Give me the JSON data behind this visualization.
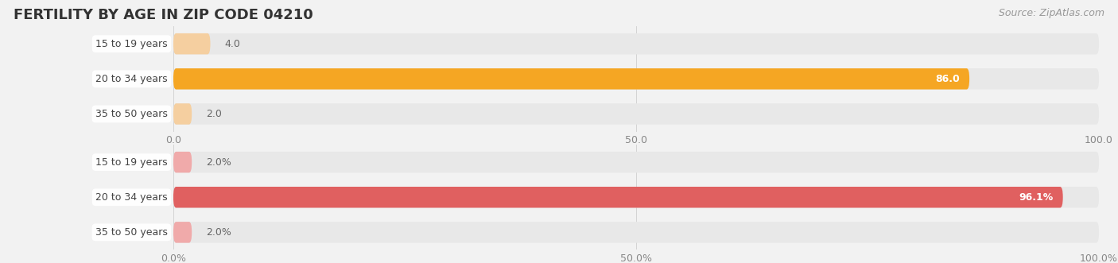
{
  "title": "FERTILITY BY AGE IN ZIP CODE 04210",
  "source": "Source: ZipAtlas.com",
  "fig_width": 14.06,
  "fig_height": 3.31,
  "top_section": {
    "categories": [
      "15 to 19 years",
      "20 to 34 years",
      "35 to 50 years"
    ],
    "values": [
      4.0,
      86.0,
      2.0
    ],
    "xlim": [
      0,
      100
    ],
    "xticks": [
      0.0,
      50.0,
      100.0
    ],
    "xtick_labels": [
      "0.0",
      "50.0",
      "100.0"
    ],
    "bar_color_main": "#F5A623",
    "bar_color_light": "#F5CFA0",
    "track_color": "#E8E8E8",
    "label_inside_color": "#FFFFFF",
    "label_outside_color": "#666666"
  },
  "bottom_section": {
    "categories": [
      "15 to 19 years",
      "20 to 34 years",
      "35 to 50 years"
    ],
    "values": [
      2.0,
      96.1,
      2.0
    ],
    "xlim": [
      0,
      100
    ],
    "xticks": [
      0.0,
      50.0,
      100.0
    ],
    "xtick_labels": [
      "0.0%",
      "50.0%",
      "100.0%"
    ],
    "bar_color_main": "#E06060",
    "bar_color_light": "#F0AAAA",
    "track_color": "#E8E8E8",
    "label_inside_color": "#FFFFFF",
    "label_outside_color": "#666666"
  },
  "label_text_color": "#444444",
  "title_fontsize": 13,
  "source_fontsize": 9,
  "tick_fontsize": 9,
  "bar_label_fontsize": 9,
  "category_fontsize": 9,
  "bg_color": "#F2F2F2"
}
